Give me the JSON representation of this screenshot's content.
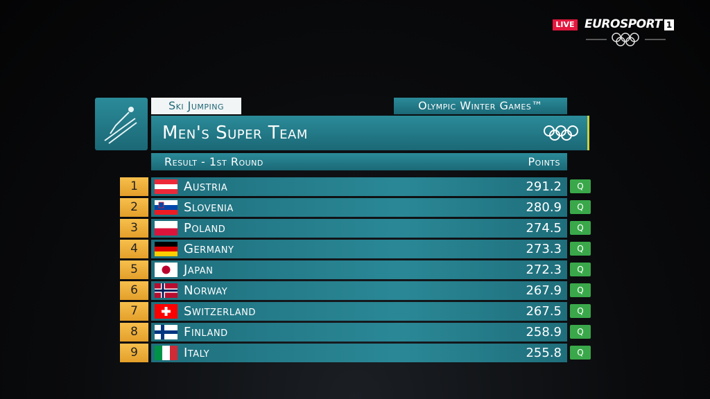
{
  "broadcaster": {
    "live": "LIVE",
    "channel": "EUROSPORT",
    "channel_number": "1"
  },
  "header": {
    "sport": "Ski Jumping",
    "event_name": "Olympic Winter Games™",
    "title": "Men's Super Team",
    "subtitle": "Result - 1st Round",
    "points_label": "Points"
  },
  "table": {
    "rows": [
      {
        "rank": 1,
        "country": "Austria",
        "points": 291.2,
        "status": "Q"
      },
      {
        "rank": 2,
        "country": "Slovenia",
        "points": 280.9,
        "status": "Q"
      },
      {
        "rank": 3,
        "country": "Poland",
        "points": 274.5,
        "status": "Q"
      },
      {
        "rank": 4,
        "country": "Germany",
        "points": 273.3,
        "status": "Q"
      },
      {
        "rank": 5,
        "country": "Japan",
        "points": 272.3,
        "status": "Q"
      },
      {
        "rank": 6,
        "country": "Norway",
        "points": 267.9,
        "status": "Q"
      },
      {
        "rank": 7,
        "country": "Switzerland",
        "points": 267.5,
        "status": "Q"
      },
      {
        "rank": 8,
        "country": "Finland",
        "points": 258.9,
        "status": "Q"
      },
      {
        "rank": 9,
        "country": "Italy",
        "points": 255.8,
        "status": "Q"
      }
    ]
  }
}
